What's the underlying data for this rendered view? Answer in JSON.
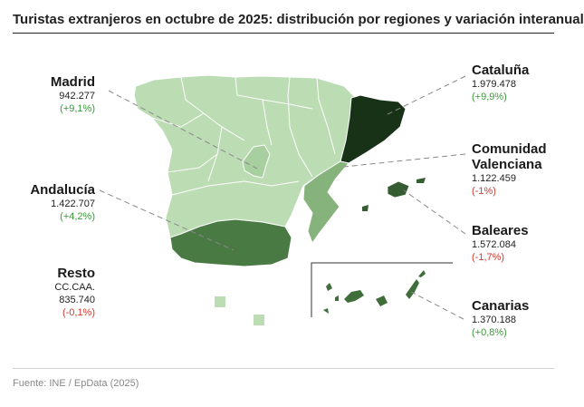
{
  "title": "Turistas extranjeros en octubre de 2025: distribución por regiones y variación interanual",
  "regions": {
    "madrid": {
      "name": "Madrid",
      "value": "942.277",
      "change": "(+9,1%)"
    },
    "andalucia": {
      "name": "Andalucía",
      "value": "1.422.707",
      "change": "(+4,2%)"
    },
    "resto": {
      "name": "Resto",
      "name2": "CC.CAA.",
      "value": "835.740",
      "change": "(-0,1%)"
    },
    "cataluna": {
      "name": "Cataluña",
      "value": "1.979.478",
      "change": "(+9,9%)"
    },
    "valenciana": {
      "name": "Comunidad",
      "name2": "Valenciana",
      "value": "1.122.459",
      "change": "(-1%)"
    },
    "baleares": {
      "name": "Baleares",
      "value": "1.572.084",
      "change": "(-1,7%)"
    },
    "canarias": {
      "name": "Canarias",
      "value": "1.370.188",
      "change": "(+0,8%)"
    }
  },
  "colors": {
    "resto": "#bcdcb4",
    "madrid": "#a8cf9f",
    "valenciana": "#86b27c",
    "canarias": "#3f6e3a",
    "andalucia": "#4a7a44",
    "baleares": "#355d31",
    "cataluna": "#183218",
    "positive": "#3a9a3a",
    "negative": "#d0392f"
  },
  "footer": "Fuente: INE / EpData (2025)"
}
